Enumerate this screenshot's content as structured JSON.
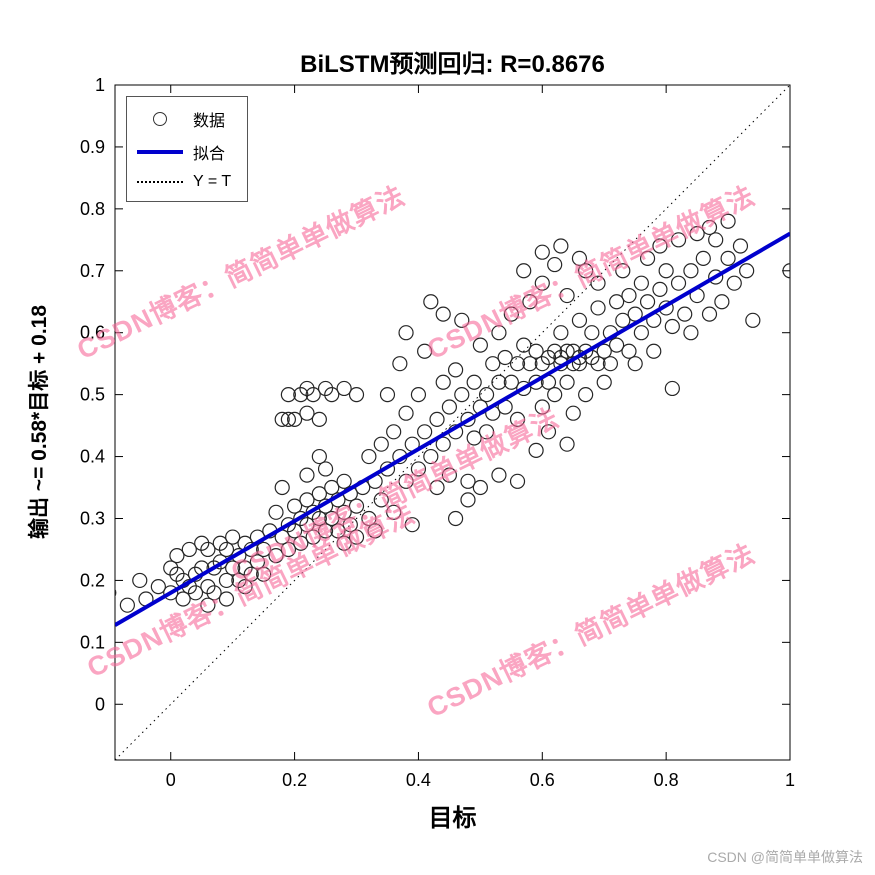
{
  "watermark": {
    "text": "CSDN博客：简简单单做算法"
  },
  "footer": {
    "credit": "CSDN @简简单单做算法"
  },
  "chart_data": {
    "type": "scatter",
    "title": "BiLSTM预测回归: R=0.8676",
    "xlabel": "目标",
    "ylabel": "输出 ~= 0.58*目标 + 0.18",
    "legend": [
      "数据",
      "拟合",
      "Y = T"
    ],
    "legend_position": "top-left",
    "grid": false,
    "xlim": [
      -0.09,
      1.0
    ],
    "ylim": [
      -0.09,
      1.0
    ],
    "x_ticks": [
      {
        "v": 0,
        "label": "0"
      },
      {
        "v": 0.2,
        "label": "0.2"
      },
      {
        "v": 0.4,
        "label": "0.4"
      },
      {
        "v": 0.6,
        "label": "0.6"
      },
      {
        "v": 0.8,
        "label": "0.8"
      },
      {
        "v": 1,
        "label": "1"
      }
    ],
    "y_ticks": [
      {
        "v": 0,
        "label": "0"
      },
      {
        "v": 0.1,
        "label": "0.1"
      },
      {
        "v": 0.2,
        "label": "0.2"
      },
      {
        "v": 0.3,
        "label": "0.3"
      },
      {
        "v": 0.4,
        "label": "0.4"
      },
      {
        "v": 0.5,
        "label": "0.5"
      },
      {
        "v": 0.6,
        "label": "0.6"
      },
      {
        "v": 0.7,
        "label": "0.7"
      },
      {
        "v": 0.8,
        "label": "0.8"
      },
      {
        "v": 0.9,
        "label": "0.9"
      },
      {
        "v": 1,
        "label": "1"
      }
    ],
    "fit": {
      "slope": 0.58,
      "intercept": 0.18,
      "R": 0.8676
    },
    "identity_line": {
      "from": [
        -0.09,
        -0.09
      ],
      "to": [
        1,
        1
      ]
    },
    "colors": {
      "fit": "#0000cd",
      "marker": "#262626",
      "watermark": "#f7699a"
    },
    "points": [
      [
        -0.1,
        0.18
      ],
      [
        -0.07,
        0.16
      ],
      [
        -0.05,
        0.2
      ],
      [
        -0.04,
        0.17
      ],
      [
        -0.02,
        0.19
      ],
      [
        0.0,
        0.22
      ],
      [
        0.0,
        0.18
      ],
      [
        0.01,
        0.24
      ],
      [
        0.02,
        0.2
      ],
      [
        0.02,
        0.17
      ],
      [
        0.03,
        0.25
      ],
      [
        0.04,
        0.21
      ],
      [
        0.04,
        0.18
      ],
      [
        0.05,
        0.26
      ],
      [
        0.05,
        0.22
      ],
      [
        0.06,
        0.19
      ],
      [
        0.06,
        0.25
      ],
      [
        0.07,
        0.22
      ],
      [
        0.07,
        0.18
      ],
      [
        0.08,
        0.26
      ],
      [
        0.08,
        0.23
      ],
      [
        0.09,
        0.2
      ],
      [
        0.09,
        0.25
      ],
      [
        0.1,
        0.22
      ],
      [
        0.1,
        0.27
      ],
      [
        0.11,
        0.24
      ],
      [
        0.11,
        0.2
      ],
      [
        0.12,
        0.26
      ],
      [
        0.12,
        0.22
      ],
      [
        0.13,
        0.25
      ],
      [
        0.13,
        0.21
      ],
      [
        0.14,
        0.27
      ],
      [
        0.14,
        0.23
      ],
      [
        0.15,
        0.25
      ],
      [
        0.15,
        0.21
      ],
      [
        0.03,
        0.19
      ],
      [
        0.06,
        0.16
      ],
      [
        0.09,
        0.17
      ],
      [
        0.12,
        0.19
      ],
      [
        0.01,
        0.21
      ],
      [
        0.16,
        0.28
      ],
      [
        0.17,
        0.24
      ],
      [
        0.17,
        0.31
      ],
      [
        0.18,
        0.27
      ],
      [
        0.18,
        0.35
      ],
      [
        0.19,
        0.29
      ],
      [
        0.19,
        0.25
      ],
      [
        0.2,
        0.32
      ],
      [
        0.2,
        0.28
      ],
      [
        0.21,
        0.3
      ],
      [
        0.21,
        0.26
      ],
      [
        0.22,
        0.33
      ],
      [
        0.22,
        0.29
      ],
      [
        0.23,
        0.31
      ],
      [
        0.23,
        0.27
      ],
      [
        0.24,
        0.34
      ],
      [
        0.24,
        0.3
      ],
      [
        0.25,
        0.32
      ],
      [
        0.25,
        0.28
      ],
      [
        0.26,
        0.35
      ],
      [
        0.26,
        0.3
      ],
      [
        0.27,
        0.33
      ],
      [
        0.27,
        0.28
      ],
      [
        0.28,
        0.31
      ],
      [
        0.28,
        0.26
      ],
      [
        0.29,
        0.34
      ],
      [
        0.29,
        0.29
      ],
      [
        0.3,
        0.32
      ],
      [
        0.3,
        0.27
      ],
      [
        0.18,
        0.46
      ],
      [
        0.19,
        0.5
      ],
      [
        0.2,
        0.46
      ],
      [
        0.21,
        0.5
      ],
      [
        0.22,
        0.47
      ],
      [
        0.23,
        0.5
      ],
      [
        0.24,
        0.46
      ],
      [
        0.25,
        0.51
      ],
      [
        0.26,
        0.5
      ],
      [
        0.28,
        0.51
      ],
      [
        0.3,
        0.5
      ],
      [
        0.22,
        0.51
      ],
      [
        0.19,
        0.46
      ],
      [
        0.22,
        0.37
      ],
      [
        0.25,
        0.38
      ],
      [
        0.28,
        0.36
      ],
      [
        0.24,
        0.4
      ],
      [
        0.31,
        0.35
      ],
      [
        0.32,
        0.3
      ],
      [
        0.32,
        0.4
      ],
      [
        0.33,
        0.36
      ],
      [
        0.33,
        0.28
      ],
      [
        0.34,
        0.42
      ],
      [
        0.34,
        0.33
      ],
      [
        0.35,
        0.38
      ],
      [
        0.35,
        0.5
      ],
      [
        0.36,
        0.44
      ],
      [
        0.36,
        0.31
      ],
      [
        0.37,
        0.4
      ],
      [
        0.37,
        0.55
      ],
      [
        0.38,
        0.36
      ],
      [
        0.38,
        0.47
      ],
      [
        0.39,
        0.42
      ],
      [
        0.39,
        0.29
      ],
      [
        0.4,
        0.5
      ],
      [
        0.4,
        0.38
      ],
      [
        0.41,
        0.44
      ],
      [
        0.41,
        0.57
      ],
      [
        0.42,
        0.4
      ],
      [
        0.42,
        0.65
      ],
      [
        0.43,
        0.46
      ],
      [
        0.43,
        0.35
      ],
      [
        0.44,
        0.52
      ],
      [
        0.44,
        0.42
      ],
      [
        0.45,
        0.48
      ],
      [
        0.45,
        0.37
      ],
      [
        0.46,
        0.54
      ],
      [
        0.46,
        0.44
      ],
      [
        0.47,
        0.5
      ],
      [
        0.47,
        0.62
      ],
      [
        0.48,
        0.46
      ],
      [
        0.48,
        0.36
      ],
      [
        0.49,
        0.52
      ],
      [
        0.49,
        0.43
      ],
      [
        0.5,
        0.48
      ],
      [
        0.5,
        0.58
      ],
      [
        0.38,
        0.6
      ],
      [
        0.44,
        0.63
      ],
      [
        0.46,
        0.3
      ],
      [
        0.48,
        0.33
      ],
      [
        0.5,
        0.35
      ],
      [
        0.51,
        0.5
      ],
      [
        0.51,
        0.44
      ],
      [
        0.52,
        0.55
      ],
      [
        0.52,
        0.47
      ],
      [
        0.53,
        0.52
      ],
      [
        0.53,
        0.6
      ],
      [
        0.54,
        0.48
      ],
      [
        0.54,
        0.56
      ],
      [
        0.55,
        0.52
      ],
      [
        0.55,
        0.63
      ],
      [
        0.56,
        0.55
      ],
      [
        0.56,
        0.46
      ],
      [
        0.57,
        0.58
      ],
      [
        0.57,
        0.51
      ],
      [
        0.58,
        0.55
      ],
      [
        0.58,
        0.65
      ],
      [
        0.59,
        0.52
      ],
      [
        0.59,
        0.57
      ],
      [
        0.6,
        0.55
      ],
      [
        0.6,
        0.48
      ],
      [
        0.6,
        0.68
      ],
      [
        0.61,
        0.56
      ],
      [
        0.61,
        0.52
      ],
      [
        0.62,
        0.57
      ],
      [
        0.62,
        0.5
      ],
      [
        0.62,
        0.71
      ],
      [
        0.63,
        0.55
      ],
      [
        0.63,
        0.6
      ],
      [
        0.63,
        0.56
      ],
      [
        0.64,
        0.57
      ],
      [
        0.64,
        0.52
      ],
      [
        0.64,
        0.66
      ],
      [
        0.65,
        0.55
      ],
      [
        0.65,
        0.57
      ],
      [
        0.65,
        0.47
      ],
      [
        0.66,
        0.56
      ],
      [
        0.66,
        0.62
      ],
      [
        0.66,
        0.55
      ],
      [
        0.67,
        0.57
      ],
      [
        0.67,
        0.5
      ],
      [
        0.67,
        0.7
      ],
      [
        0.68,
        0.56
      ],
      [
        0.68,
        0.6
      ],
      [
        0.69,
        0.55
      ],
      [
        0.69,
        0.64
      ],
      [
        0.7,
        0.57
      ],
      [
        0.7,
        0.52
      ],
      [
        0.56,
        0.36
      ],
      [
        0.59,
        0.41
      ],
      [
        0.53,
        0.37
      ],
      [
        0.61,
        0.44
      ],
      [
        0.64,
        0.42
      ],
      [
        0.57,
        0.7
      ],
      [
        0.6,
        0.73
      ],
      [
        0.63,
        0.74
      ],
      [
        0.66,
        0.72
      ],
      [
        0.69,
        0.68
      ],
      [
        0.71,
        0.6
      ],
      [
        0.71,
        0.55
      ],
      [
        0.72,
        0.65
      ],
      [
        0.72,
        0.58
      ],
      [
        0.73,
        0.62
      ],
      [
        0.73,
        0.7
      ],
      [
        0.74,
        0.57
      ],
      [
        0.74,
        0.66
      ],
      [
        0.75,
        0.63
      ],
      [
        0.75,
        0.55
      ],
      [
        0.76,
        0.68
      ],
      [
        0.76,
        0.6
      ],
      [
        0.77,
        0.65
      ],
      [
        0.77,
        0.72
      ],
      [
        0.78,
        0.62
      ],
      [
        0.78,
        0.57
      ],
      [
        0.79,
        0.67
      ],
      [
        0.79,
        0.74
      ],
      [
        0.8,
        0.64
      ],
      [
        0.8,
        0.7
      ],
      [
        0.81,
        0.61
      ],
      [
        0.81,
        0.51
      ],
      [
        0.82,
        0.68
      ],
      [
        0.82,
        0.75
      ],
      [
        0.83,
        0.63
      ],
      [
        0.84,
        0.7
      ],
      [
        0.84,
        0.6
      ],
      [
        0.85,
        0.76
      ],
      [
        0.85,
        0.66
      ],
      [
        0.86,
        0.72
      ],
      [
        0.87,
        0.77
      ],
      [
        0.87,
        0.63
      ],
      [
        0.88,
        0.69
      ],
      [
        0.88,
        0.75
      ],
      [
        0.89,
        0.65
      ],
      [
        0.9,
        0.72
      ],
      [
        0.9,
        0.78
      ],
      [
        0.91,
        0.68
      ],
      [
        0.92,
        0.74
      ],
      [
        0.93,
        0.7
      ],
      [
        0.94,
        0.62
      ],
      [
        1.0,
        0.7
      ]
    ]
  }
}
